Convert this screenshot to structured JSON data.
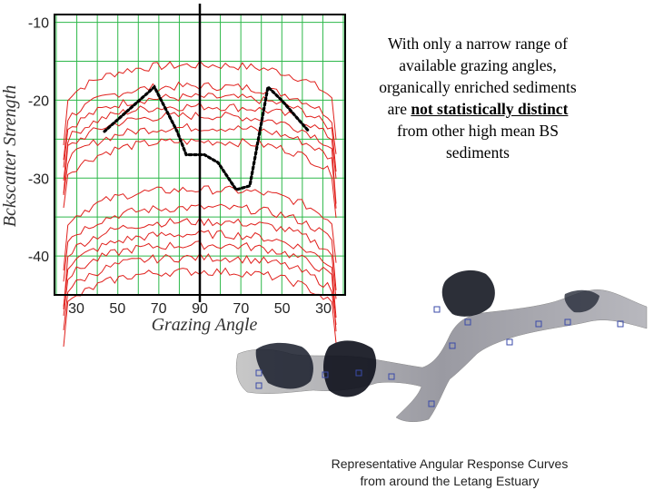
{
  "note": {
    "line1": "With only a narrow range of",
    "line2": "available grazing angles,",
    "line3": "organically enriched sediments",
    "line4_pre": "are",
    "line4_emph": "not statistically distinct",
    "line5": "from other high mean BS",
    "line6": "sediments"
  },
  "caption": {
    "line1": "Representative Angular Response Curves",
    "line2": "from around the Letang Estuary"
  },
  "chart_data": {
    "type": "line",
    "xlabel": "Grazing Angle",
    "ylabel": "Bckscatter Strength",
    "x_ticks": [
      "30",
      "50",
      "70",
      "90",
      "70",
      "50",
      "30"
    ],
    "y_ticks": [
      -10,
      -20,
      -30,
      -40
    ],
    "ylim": [
      -45,
      -9
    ],
    "grid": true,
    "colors": {
      "curves": "#e0201c",
      "grid": "#2db84a",
      "highlight": "#000000"
    },
    "curve_levels": [
      -15.5,
      -18.2,
      -19.6,
      -20.8,
      -22.0,
      -23.5,
      -25.3,
      -31.5,
      -33.8,
      -35.6,
      -37.2,
      -38.6,
      -40.2,
      -42.0
    ],
    "highlight_curve": {
      "style": "dotted",
      "points": [
        [
          22,
          -24
        ],
        [
          44,
          -18.3
        ],
        [
          54,
          -24
        ],
        [
          58,
          -27
        ],
        [
          66,
          -27
        ],
        [
          72,
          -28
        ],
        [
          80,
          -31.5
        ],
        [
          86,
          -31
        ],
        [
          94,
          -18.3
        ],
        [
          100,
          -20
        ],
        [
          112,
          -24
        ]
      ]
    }
  },
  "map": {
    "name": "Letang Estuary"
  }
}
